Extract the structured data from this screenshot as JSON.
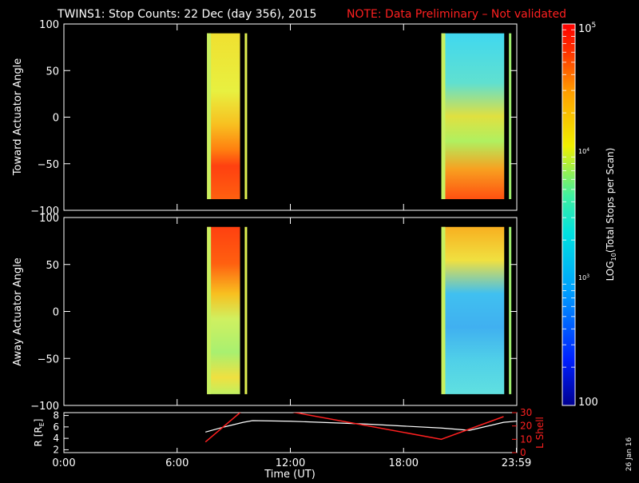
{
  "title": {
    "main": "TWINS1: Stop Counts: 22 Dec (day 356), 2015",
    "note": "NOTE: Data Preliminary – Not validated",
    "note_color": "#ff2020"
  },
  "side_date": "26 Jan 16",
  "chart_data": [
    {
      "type": "heatmap",
      "ylabel": "Toward Actuator Angle",
      "ylim": [
        -100,
        100
      ],
      "yticks": [
        "100",
        "50",
        "0",
        "−50",
        "−100"
      ],
      "ytick_values": [
        100,
        50,
        0,
        -50,
        -100
      ],
      "xlim_hours": [
        0,
        24
      ],
      "data_angle_range": [
        -88,
        90
      ],
      "blocks": [
        {
          "start": "07:35",
          "end": "09:20",
          "gap_stripe": "09:35"
        },
        {
          "start": "20:00",
          "end": "23:20",
          "gap_stripe": "23:35"
        }
      ]
    },
    {
      "type": "heatmap",
      "ylabel": "Away Actuator Angle",
      "ylim": [
        -100,
        100
      ],
      "yticks": [
        "100",
        "50",
        "0",
        "−50",
        "−100"
      ],
      "ytick_values": [
        100,
        50,
        0,
        -50,
        -100
      ],
      "xlim_hours": [
        0,
        24
      ],
      "data_angle_range": [
        -88,
        90
      ],
      "blocks": [
        {
          "start": "07:35",
          "end": "09:20",
          "gap_stripe": "09:35"
        },
        {
          "start": "20:00",
          "end": "23:20",
          "gap_stripe": "23:35"
        }
      ]
    },
    {
      "type": "line",
      "ylabel": "R [R_E]",
      "ylabel_main": "R [R",
      "ylabel_sub": "E",
      "ylabel_close": "]",
      "ylim_left": [
        1.5,
        8.5
      ],
      "yticks_left": [
        "2",
        "4",
        "6",
        "8"
      ],
      "ytick_values_left": [
        2,
        4,
        6,
        8
      ],
      "ylabel_right": "L Shell",
      "ylim_right": [
        0,
        30
      ],
      "yticks_right": [
        "0",
        "10",
        "20",
        "30"
      ],
      "ytick_values_right": [
        0,
        10,
        20,
        30
      ],
      "xlabel": "Time (UT)",
      "xticks": [
        "0:00",
        "6:00",
        "12:00",
        "18:00",
        "23:59"
      ],
      "xtick_hours": [
        0,
        6,
        12,
        18,
        23.98
      ],
      "series": [
        {
          "name": "R",
          "color": "#ffffff",
          "x": [
            7.5,
            8.5,
            9.5,
            10.0,
            12.0,
            16.0,
            20.0,
            21.5,
            23.3,
            23.98
          ],
          "y": [
            5.1,
            6.0,
            6.8,
            7.1,
            7.0,
            6.5,
            5.8,
            5.4,
            6.8,
            7.0
          ]
        },
        {
          "name": "L Shell",
          "color": "#ff2020",
          "x": [
            7.5,
            9.5,
            11.9,
            20.0,
            23.3
          ],
          "y": [
            8,
            32,
            31,
            10,
            27
          ]
        }
      ]
    },
    {
      "type": "colorbar",
      "label": "LOG10(Total Stops per Scan)",
      "label_main": "LOG",
      "label_sub": "10",
      "label_rest": "(Total Stops per Scan)",
      "tick_top": "10",
      "tick_top_exp": "5",
      "tick_mid": "10",
      "tick_mid_exp": "4",
      "tick_low": "10",
      "tick_low_exp": "3",
      "tick_bottom": "100",
      "range_log": [
        2,
        5
      ]
    }
  ],
  "x_axis_label": "Time (UT)"
}
